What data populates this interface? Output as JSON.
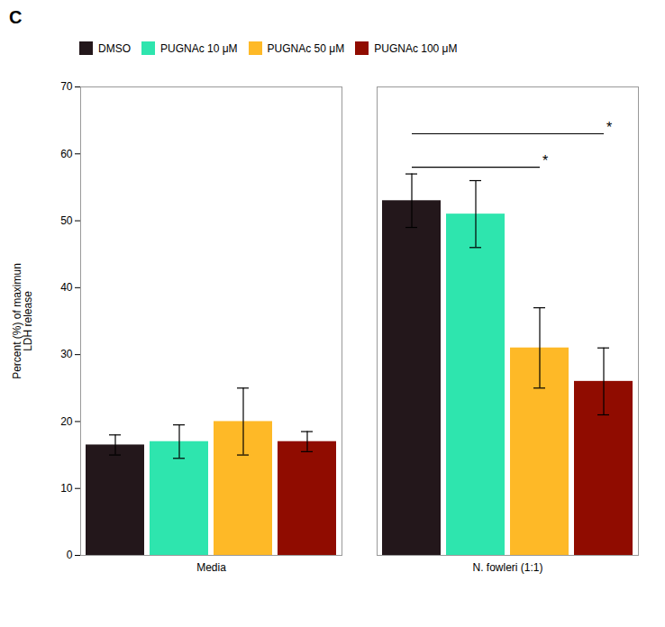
{
  "chart_data": {
    "type": "bar",
    "title": "C",
    "categories": [
      "Media",
      "N. fowleri (1:1)"
    ],
    "series": [
      {
        "name": "DMSO",
        "values": [
          16.5,
          53.0
        ],
        "errors": [
          1.5,
          4.0
        ]
      },
      {
        "name": "PUGNAc 10 μM",
        "values": [
          17.0,
          51.0
        ],
        "errors": [
          2.5,
          5.0
        ]
      },
      {
        "name": "PUGNAc 50 μM",
        "values": [
          20.0,
          31.0
        ],
        "errors": [
          5.0,
          6.0
        ]
      },
      {
        "name": "PUGNAc 100 μM",
        "values": [
          17.0,
          26.0
        ],
        "errors": [
          1.5,
          5.0
        ]
      }
    ],
    "ylabel": "Percent (%) of maximun\nLDH release",
    "ylim": [
      0,
      70
    ],
    "yticks": [
      0,
      10,
      20,
      30,
      40,
      50,
      60,
      70
    ],
    "legend": "upper left",
    "grid": false,
    "annotations": [
      {
        "text": "*",
        "y": 58,
        "category": "N. fowleri (1:1)",
        "from": "DMSO",
        "to": "PUGNAc 50 μM"
      },
      {
        "text": "*",
        "y": 63,
        "category": "N. fowleri (1:1)",
        "from": "DMSO",
        "to": "PUGNAc 100 μM"
      }
    ]
  }
}
